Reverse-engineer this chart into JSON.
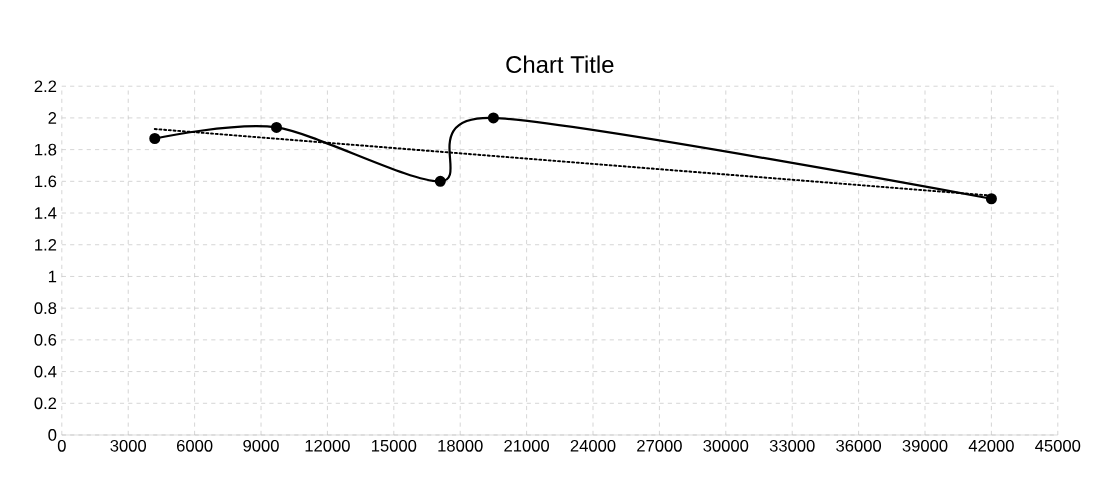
{
  "chart_data": {
    "type": "line",
    "title": "Chart Title",
    "grid": true,
    "xlim": [
      0,
      45000
    ],
    "xticks": [
      0,
      3000,
      6000,
      9000,
      12000,
      15000,
      18000,
      21000,
      24000,
      27000,
      30000,
      33000,
      36000,
      39000,
      42000,
      45000
    ],
    "ylim": [
      0,
      2.2
    ],
    "yticks": [
      0,
      0.2,
      0.4,
      0.6,
      0.8,
      1,
      1.2,
      1.4,
      1.6,
      1.8,
      2,
      2.2
    ],
    "series": [
      {
        "color": "#000000",
        "marker": "circle",
        "line_style": "solid",
        "x": [
          4200,
          9700,
          17100,
          19500,
          42000
        ],
        "values": [
          1.87,
          1.94,
          1.6,
          2.0,
          1.49
        ]
      },
      {
        "type": "line",
        "color": "#000000",
        "marker": "none",
        "line_style": "dotted",
        "x": [
          4200,
          42000
        ],
        "values": [
          1.93,
          1.51
        ]
      }
    ]
  }
}
